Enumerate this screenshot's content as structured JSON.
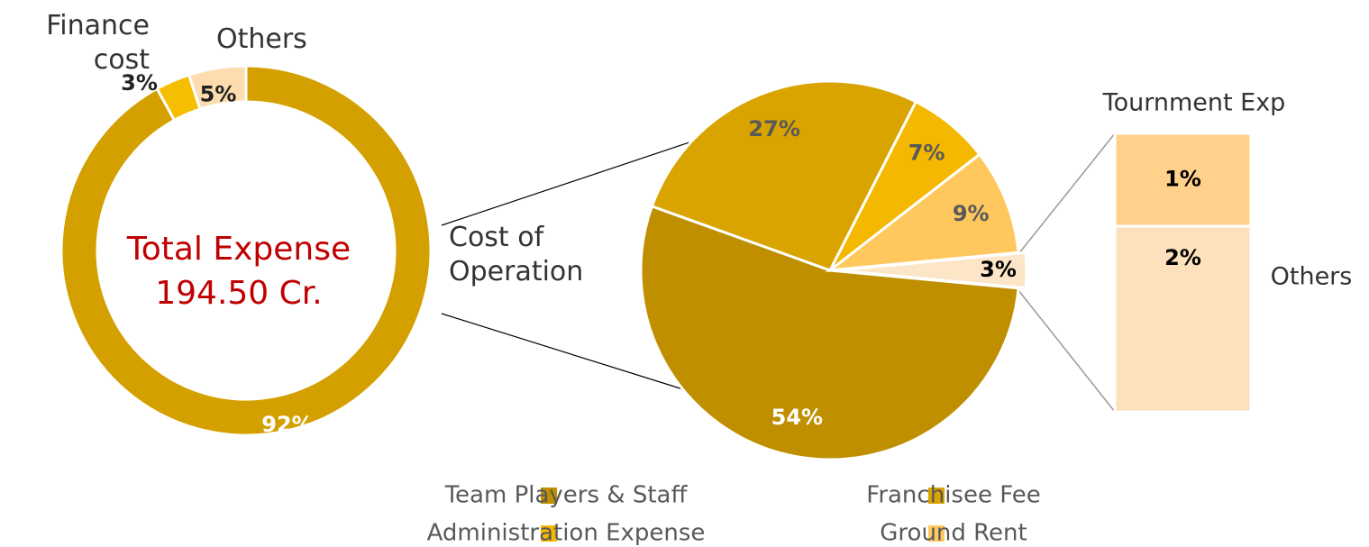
{
  "chart_data": [
    {
      "type": "donut",
      "center_label": [
        "Total Expense",
        "194.50 Cr."
      ],
      "categories": [
        "Cost of Operation",
        "Finance cost",
        "Others"
      ],
      "values": [
        92,
        3,
        5
      ],
      "value_labels": [
        "92%",
        "3%",
        "5%"
      ],
      "colors": [
        "#D4A000",
        "#F5BE00",
        "#FDDDB0"
      ]
    },
    {
      "type": "pie",
      "categories": [
        "Team Players & Staff",
        "Franchisee Fee",
        "Administration Expense",
        "Ground Rent",
        null
      ],
      "values": [
        54,
        27,
        7,
        9,
        3
      ],
      "value_labels": [
        "54%",
        "27%",
        "7%",
        "9%",
        "3%"
      ],
      "colors": [
        "#BF8F00",
        "#D9A300",
        "#F5B800",
        "#FFC85E",
        "#FDE5C8"
      ],
      "legend": "bottom"
    },
    {
      "type": "stacked_bar",
      "series": [
        {
          "name": "Tournment Exp",
          "color": "#FFD18A",
          "values": [
            1
          ],
          "value_labels": [
            "1%"
          ]
        },
        {
          "name": "Others",
          "color": "#FDE0BC",
          "values": [
            2
          ],
          "value_labels": [
            "2%"
          ]
        }
      ]
    }
  ]
}
